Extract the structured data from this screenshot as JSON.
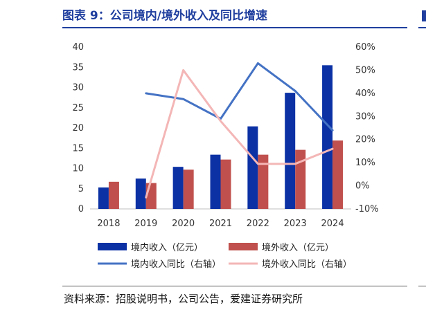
{
  "title": "图表 9：公司境内/境外收入及同比增速",
  "source": "资料来源：招股说明书，公司公告，爱建证券研究所",
  "colors": {
    "domestic_bar": "#0b31a5",
    "foreign_bar": "#c0504d",
    "domestic_line": "#4472c4",
    "foreign_line": "#f4b6b6",
    "title": "#1f3e9e"
  },
  "chart_data": {
    "type": "bar",
    "categories": [
      "2018",
      "2019",
      "2020",
      "2021",
      "2022",
      "2023",
      "2024"
    ],
    "left_axis": {
      "ylim": [
        0,
        40
      ],
      "ticks": [
        "0",
        "5",
        "10",
        "15",
        "20",
        "25",
        "30",
        "35",
        "40"
      ]
    },
    "right_axis": {
      "ylim": [
        -10,
        60
      ],
      "ticks": [
        "-10%",
        "0%",
        "10%",
        "20%",
        "30%",
        "40%",
        "50%",
        "60%"
      ]
    },
    "series": [
      {
        "name": "境内收入（亿元）",
        "type": "bar",
        "axis": "left",
        "values": [
          5.3,
          7.5,
          10.4,
          13.4,
          20.4,
          28.7,
          35.5
        ]
      },
      {
        "name": "境外收入（亿元）",
        "type": "bar",
        "axis": "left",
        "values": [
          6.7,
          6.4,
          9.7,
          12.2,
          13.4,
          14.6,
          16.9
        ]
      },
      {
        "name": "境内收入同比（右轴）",
        "type": "line",
        "axis": "right",
        "values": [
          null,
          40,
          37.5,
          29,
          53,
          41,
          24
        ]
      },
      {
        "name": "境外收入同比（右轴）",
        "type": "line",
        "axis": "right",
        "values": [
          null,
          -5,
          50,
          28,
          9.5,
          9.5,
          16
        ]
      }
    ],
    "legend_position": "bottom",
    "grid": false
  }
}
